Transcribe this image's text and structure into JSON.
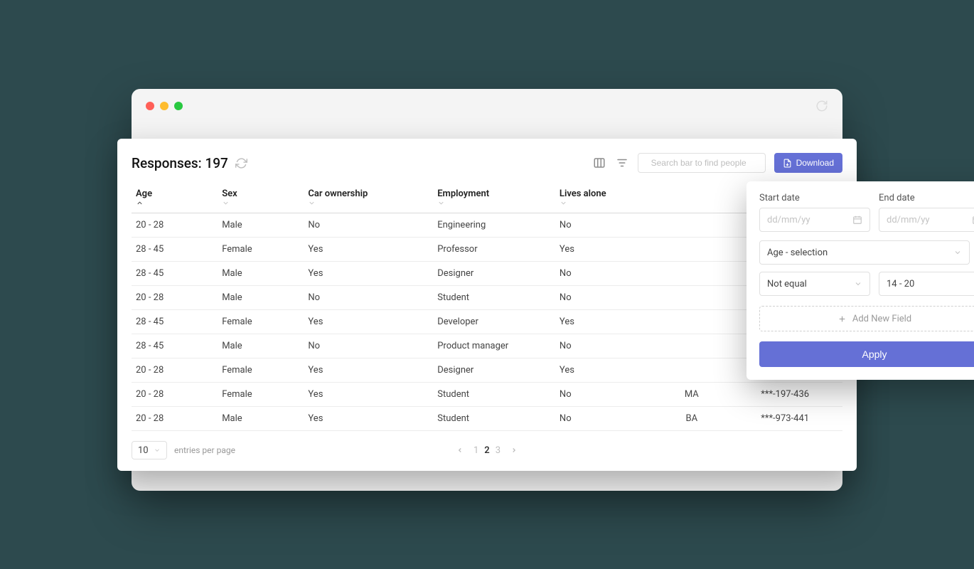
{
  "colors": {
    "accent": "#6570d6",
    "background_page": "#2d4a4e",
    "window_bg": "#f4f4f4",
    "panel_bg": "#ffffff",
    "border": "#e0e0e0",
    "row_border": "#ececec",
    "text_primary": "#222222",
    "text_secondary": "#444444",
    "text_muted": "#bdbdbd",
    "traffic_red": "#ff5f57",
    "traffic_yellow": "#febc2e",
    "traffic_green": "#28c840"
  },
  "header": {
    "title_prefix": "Responses:",
    "count": "197",
    "search_placeholder": "Search bar to find people",
    "download_label": "Download"
  },
  "table": {
    "columns": [
      {
        "key": "age",
        "label": "Age",
        "sort": "asc",
        "active": true
      },
      {
        "key": "sex",
        "label": "Sex",
        "sort": "none",
        "active": false
      },
      {
        "key": "car",
        "label": "Car ownership",
        "sort": "none",
        "active": false
      },
      {
        "key": "emp",
        "label": "Employment",
        "sort": "none",
        "active": false
      },
      {
        "key": "lives",
        "label": "Lives alone",
        "sort": "none",
        "active": false
      },
      {
        "key": "edu",
        "label": "",
        "sort": "none",
        "active": false
      },
      {
        "key": "ssn",
        "label": "",
        "sort": "none",
        "active": false
      }
    ],
    "rows": [
      {
        "age": "20 - 28",
        "sex": "Male",
        "car": "No",
        "emp": "Engineering",
        "lives": "No",
        "edu": "",
        "ssn": ""
      },
      {
        "age": "28 - 45",
        "sex": "Female",
        "car": "Yes",
        "emp": "Professor",
        "lives": "Yes",
        "edu": "",
        "ssn": ""
      },
      {
        "age": "28 - 45",
        "sex": "Male",
        "car": "Yes",
        "emp": "Designer",
        "lives": "No",
        "edu": "",
        "ssn": ""
      },
      {
        "age": "20 - 28",
        "sex": "Male",
        "car": "No",
        "emp": "Student",
        "lives": "No",
        "edu": "",
        "ssn": ""
      },
      {
        "age": "28 - 45",
        "sex": "Female",
        "car": "Yes",
        "emp": "Developer",
        "lives": "Yes",
        "edu": "",
        "ssn": ""
      },
      {
        "age": "28 - 45",
        "sex": "Male",
        "car": "No",
        "emp": "Product manager",
        "lives": "No",
        "edu": "",
        "ssn": ""
      },
      {
        "age": "20 - 28",
        "sex": "Female",
        "car": "Yes",
        "emp": "Designer",
        "lives": "Yes",
        "edu": "",
        "ssn": ""
      },
      {
        "age": "20 - 28",
        "sex": "Female",
        "car": "Yes",
        "emp": "Student",
        "lives": "No",
        "edu": "MA",
        "ssn": "***-197-436"
      },
      {
        "age": "20 - 28",
        "sex": "Male",
        "car": "Yes",
        "emp": "Student",
        "lives": "No",
        "edu": "BA",
        "ssn": "***-973-441"
      }
    ]
  },
  "footer": {
    "entries_value": "10",
    "entries_label": "entries per page",
    "pages": [
      "1",
      "2",
      "3"
    ],
    "active_page": "2"
  },
  "filter": {
    "start_label": "Start date",
    "end_label": "End date",
    "date_placeholder": "dd/mm/yy",
    "field_selection": "Age - selection",
    "operator": "Not equal",
    "value": "14 - 20",
    "add_field_label": "Add New Field",
    "apply_label": "Apply"
  }
}
